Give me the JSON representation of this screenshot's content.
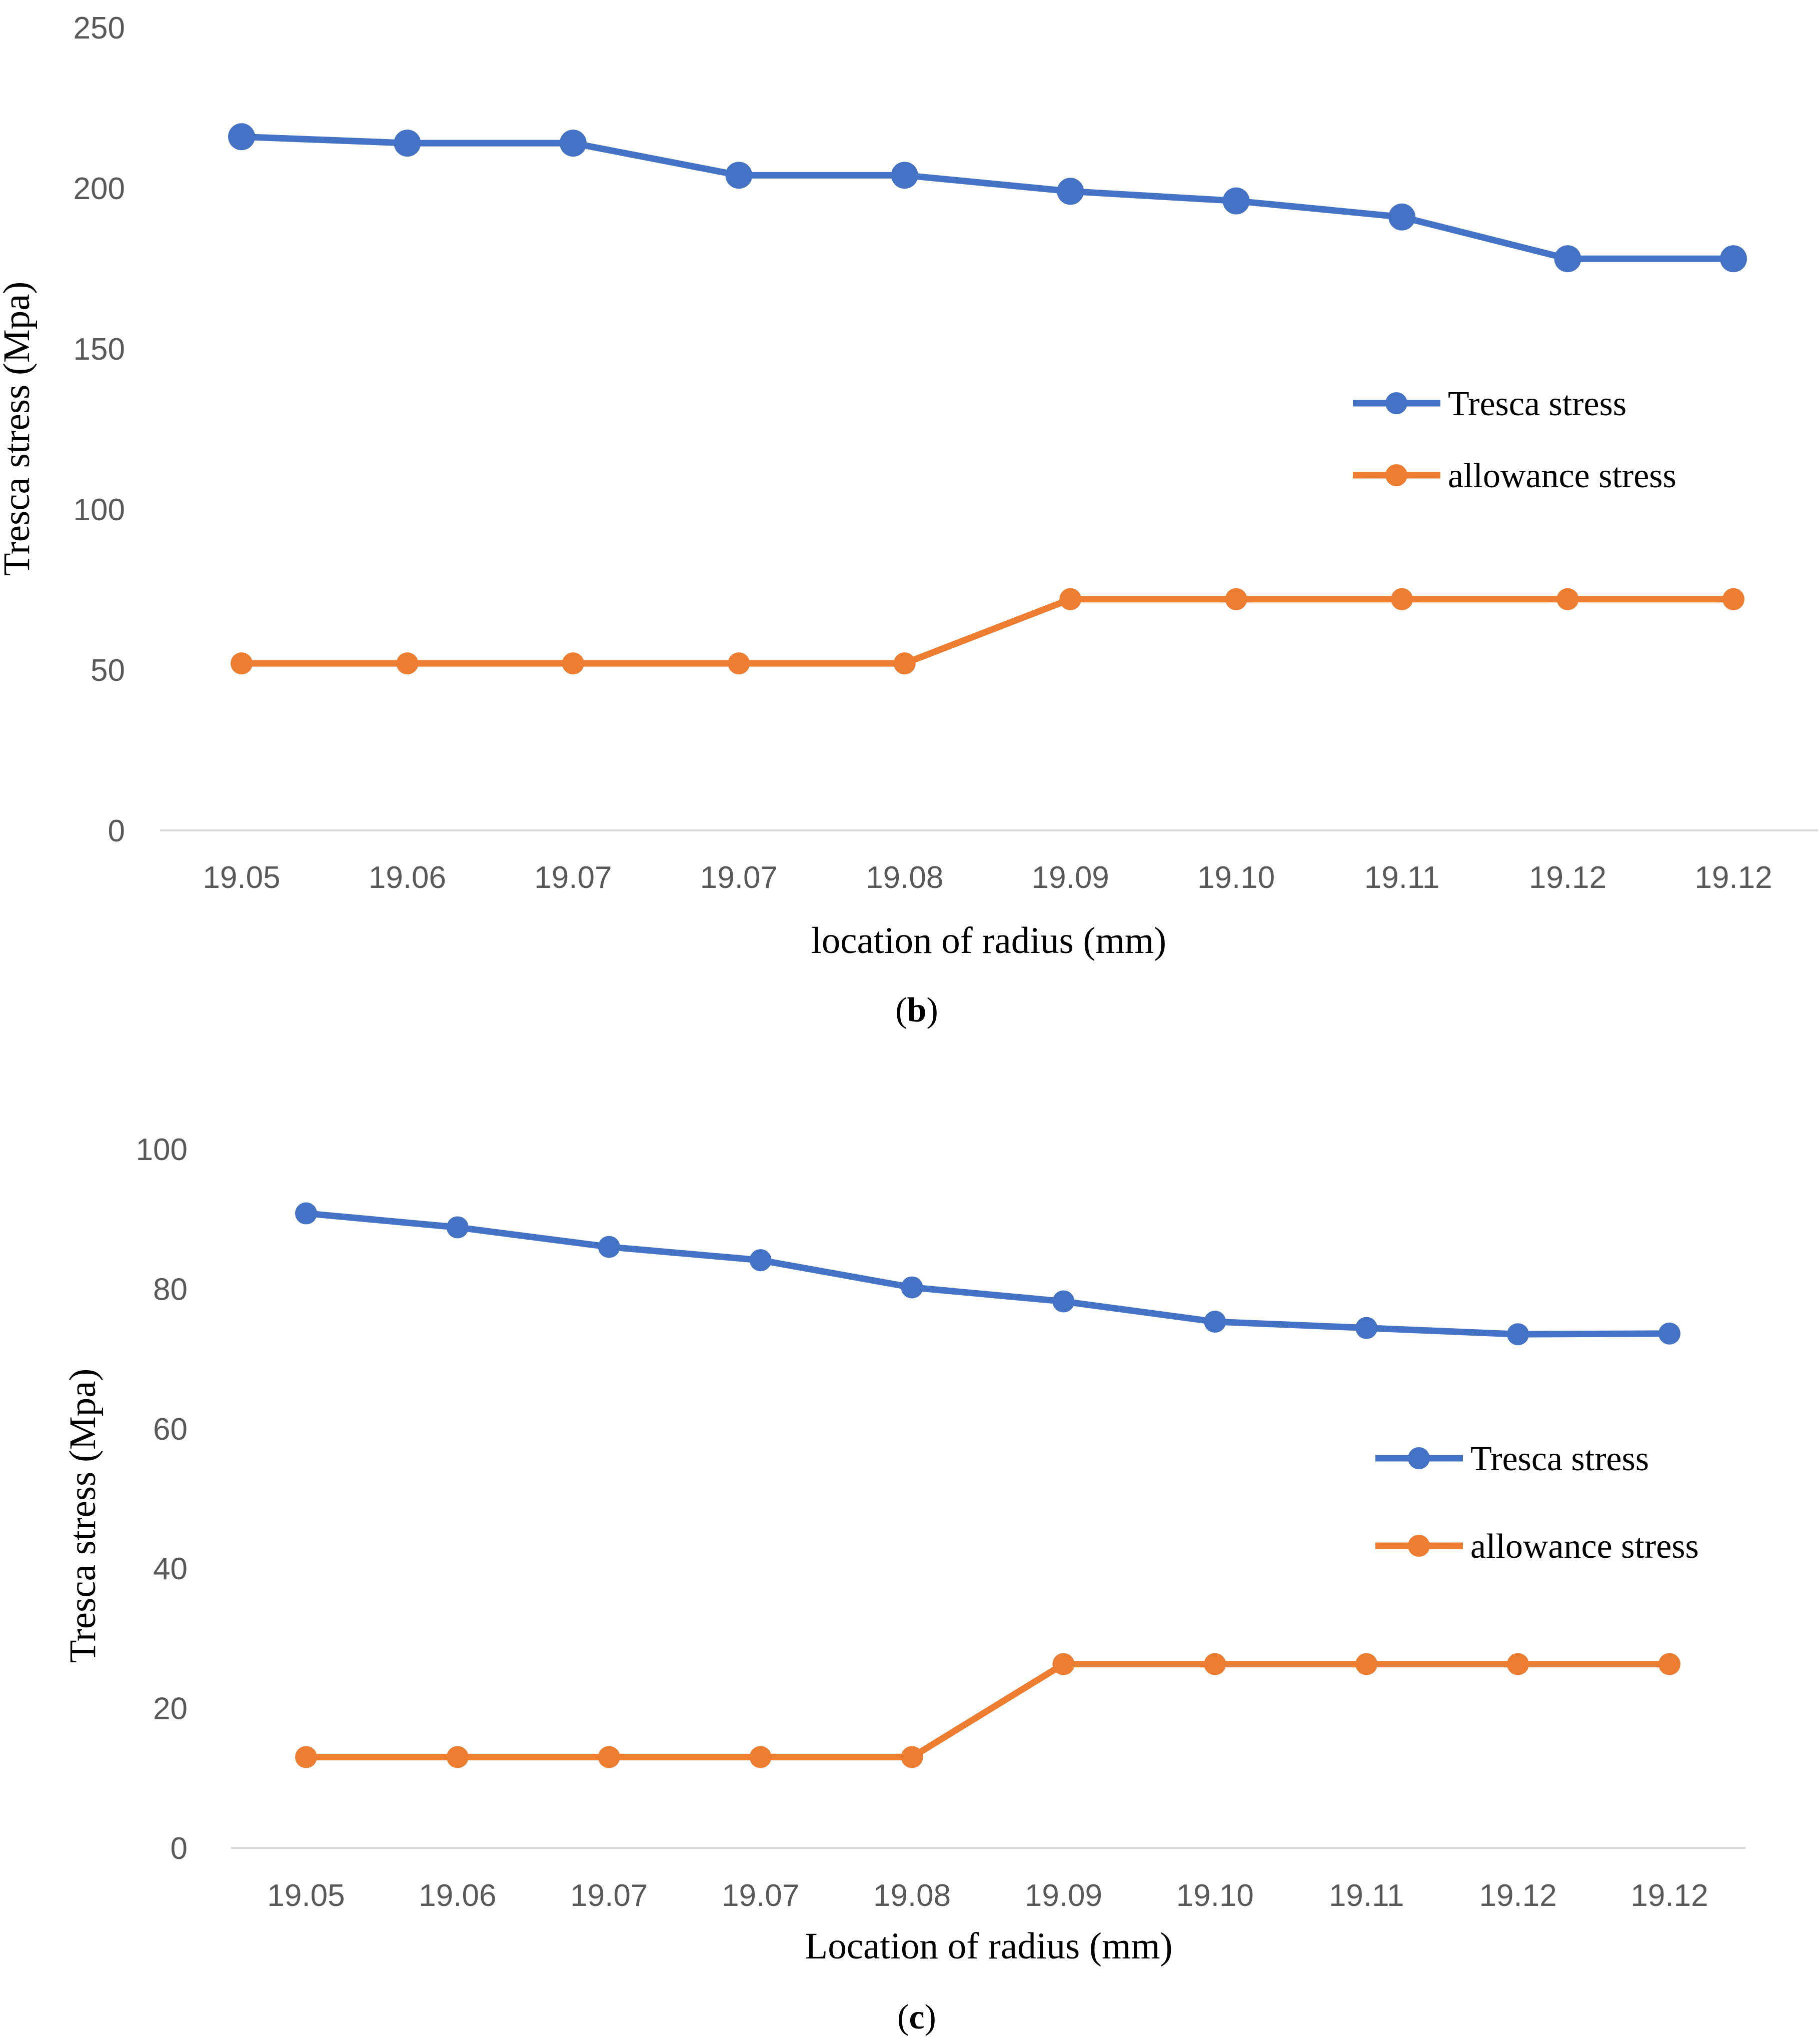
{
  "chart_data": [
    {
      "type": "line",
      "categories": [
        "19.05",
        "19.06",
        "19.07",
        "19.07",
        "19.08",
        "19.09",
        "19.10",
        "19.11",
        "19.12",
        "19.12"
      ],
      "series": [
        {
          "name": "Tresca stress",
          "color": "#4472C4",
          "values": [
            216,
            214,
            214,
            204,
            204,
            199,
            196,
            191,
            178,
            178
          ]
        },
        {
          "name": "allowance stress",
          "color": "#ED7D31",
          "values": [
            52,
            52,
            52,
            52,
            52,
            72,
            72,
            72,
            72,
            72
          ]
        }
      ],
      "y_ticks": [
        0,
        50,
        100,
        150,
        200,
        250
      ],
      "ylim": [
        0,
        250
      ],
      "xlabel": "location of radius (mm)",
      "ylabel": "Tresca stress (Mpa)",
      "caption": {
        "open": "(",
        "letter": "b",
        "close": ")"
      },
      "legend": "right",
      "grid": false
    },
    {
      "type": "line",
      "categories": [
        "19.05",
        "19.06",
        "19.07",
        "19.07",
        "19.08",
        "19.09",
        "19.10",
        "19.11",
        "19.12",
        "19.12"
      ],
      "series": [
        {
          "name": "Tresca stress",
          "color": "#4472C4",
          "values": [
            90.8,
            88.8,
            86,
            84.1,
            80.2,
            78.2,
            75.3,
            74.4,
            73.5,
            73.6
          ]
        },
        {
          "name": "allowance stress",
          "color": "#ED7D31",
          "values": [
            13,
            13,
            13,
            13,
            13,
            26.3,
            26.3,
            26.3,
            26.3,
            26.3
          ]
        }
      ],
      "y_ticks": [
        0,
        20,
        40,
        60,
        80,
        100
      ],
      "ylim": [
        0,
        100
      ],
      "xlabel": "Location of radius (mm)",
      "ylabel": "Tresca stress (Mpa)",
      "caption": {
        "open": "(",
        "letter": "c",
        "close": ")"
      },
      "legend": "right",
      "grid": false
    }
  ]
}
